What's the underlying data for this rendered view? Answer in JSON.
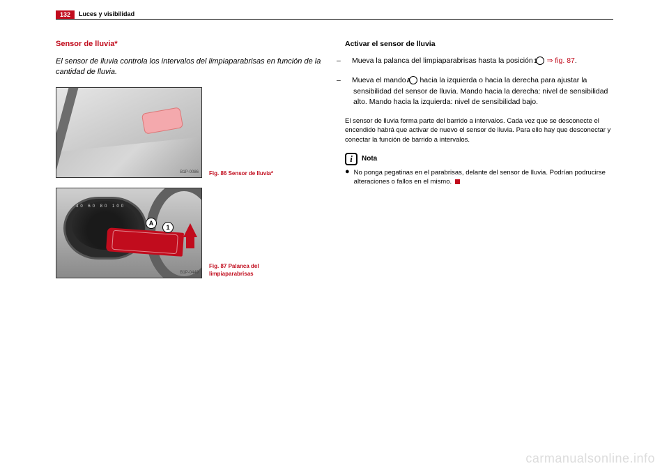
{
  "page_number": "132",
  "section": "Luces y visibilidad",
  "subsection_title": "Sensor de lluvia*",
  "intro": "El sensor de lluvia controla los intervalos del limpiaparabrisas en función de la cantidad de lluvia.",
  "fig86": {
    "code": "B1P-0086",
    "caption": "Fig. 86  Sensor de lluvia*"
  },
  "fig87": {
    "code": "B1P-0449",
    "caption": "Fig. 87  Palanca del limpiaparabrisas",
    "badgeA": "A",
    "badge1": "1",
    "ticks": "40 60 80 100"
  },
  "col2": {
    "title": "Activar el sensor de lluvia",
    "step1_a": "Mueva la palanca del limpiaparabrisas hasta la posición ",
    "step1_circ": "1",
    "step1_ref": "⇒ fig. 87",
    "step1_end": ".",
    "step2_a": "Mueva el mando ",
    "step2_circ": "A",
    "step2_b": " hacia la izquierda o hacia la derecha para ajustar la sensibilidad del sensor de lluvia. Mando hacia la derecha: nivel de sensibilidad alto. Mando hacia la izquierda: nivel de sensibilidad bajo.",
    "body": "El sensor de lluvia forma parte del barrido a intervalos. Cada vez que se desconecte el encendido habrá que activar de nuevo el sensor de lluvia. Para ello hay que desconectar y conectar la función de barrido a intervalos.",
    "note_label": "Nota",
    "note_text": "No ponga pegatinas en el parabrisas, delante del sensor de lluvia. Podrían podrucirse alteraciones o fallos en el mismo."
  },
  "watermark": "carmanualsonline.info",
  "note_icon": "i",
  "dash": "–"
}
